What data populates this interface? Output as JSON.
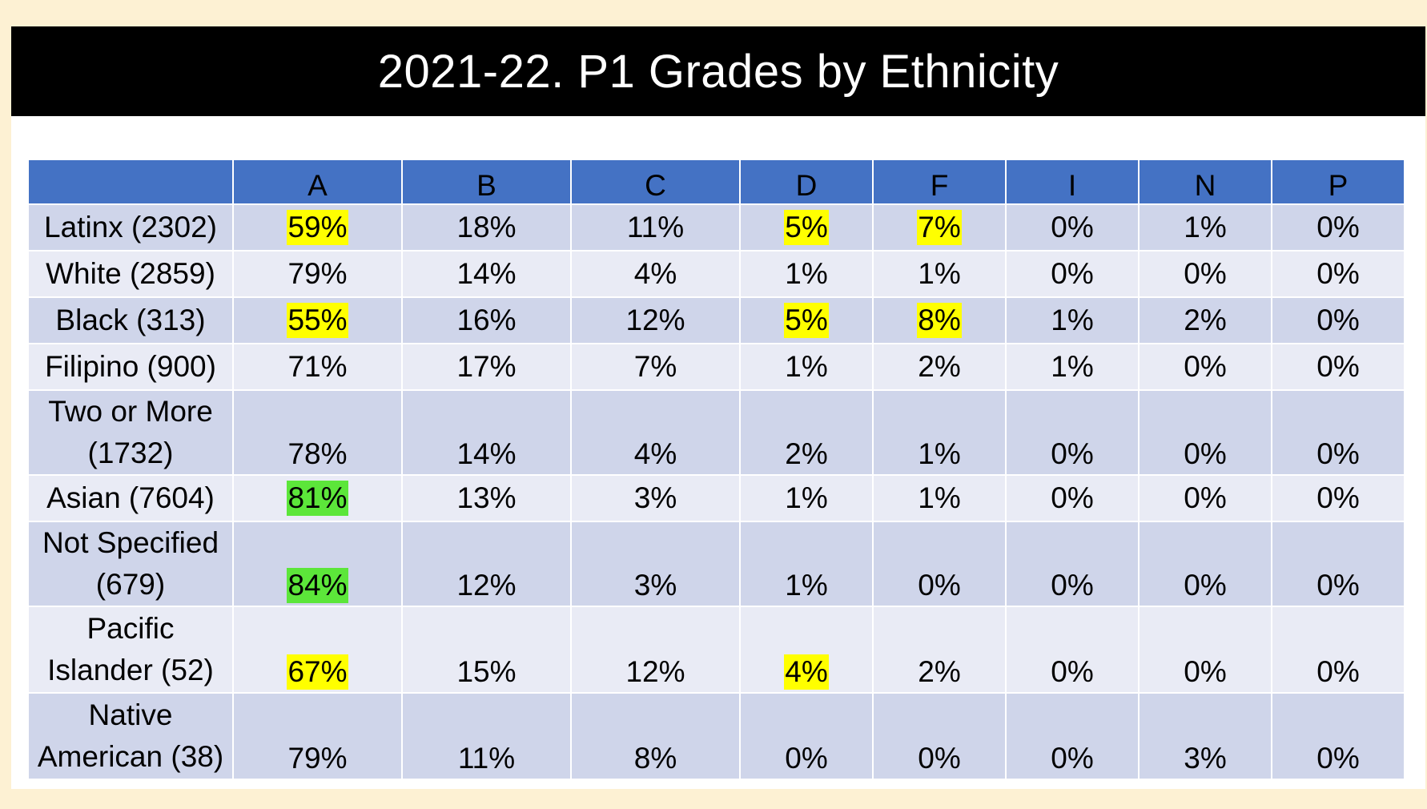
{
  "title": "2021-22. P1 Grades by Ethnicity",
  "columns": [
    "",
    "A",
    "B",
    "C",
    "D",
    "F",
    "I",
    "N",
    "P"
  ],
  "colors": {
    "page_background": "#fdf1d3",
    "title_bar": "#000000",
    "header": "#4472c4",
    "row_odd": "#cfd5ea",
    "row_even": "#e9ebf5",
    "highlight_yellow": "#ffff00",
    "highlight_green": "#5ce63a"
  },
  "rows": [
    {
      "label": "Latinx (2302)",
      "cells": [
        {
          "value": "59%",
          "highlight": "yellow"
        },
        {
          "value": "18%",
          "highlight": ""
        },
        {
          "value": "11%",
          "highlight": ""
        },
        {
          "value": "5%",
          "highlight": "yellow"
        },
        {
          "value": "7%",
          "highlight": "yellow"
        },
        {
          "value": "0%",
          "highlight": ""
        },
        {
          "value": "1%",
          "highlight": ""
        },
        {
          "value": "0%",
          "highlight": ""
        }
      ]
    },
    {
      "label": "White (2859)",
      "cells": [
        {
          "value": "79%",
          "highlight": ""
        },
        {
          "value": "14%",
          "highlight": ""
        },
        {
          "value": "4%",
          "highlight": ""
        },
        {
          "value": "1%",
          "highlight": ""
        },
        {
          "value": "1%",
          "highlight": ""
        },
        {
          "value": "0%",
          "highlight": ""
        },
        {
          "value": "0%",
          "highlight": ""
        },
        {
          "value": "0%",
          "highlight": ""
        }
      ]
    },
    {
      "label": "Black (313)",
      "cells": [
        {
          "value": "55%",
          "highlight": "yellow"
        },
        {
          "value": "16%",
          "highlight": ""
        },
        {
          "value": "12%",
          "highlight": ""
        },
        {
          "value": "5%",
          "highlight": "yellow"
        },
        {
          "value": "8%",
          "highlight": "yellow"
        },
        {
          "value": "1%",
          "highlight": ""
        },
        {
          "value": "2%",
          "highlight": ""
        },
        {
          "value": "0%",
          "highlight": ""
        }
      ]
    },
    {
      "label": "Filipino (900)",
      "cells": [
        {
          "value": "71%",
          "highlight": ""
        },
        {
          "value": "17%",
          "highlight": ""
        },
        {
          "value": "7%",
          "highlight": ""
        },
        {
          "value": "1%",
          "highlight": ""
        },
        {
          "value": "2%",
          "highlight": ""
        },
        {
          "value": "1%",
          "highlight": ""
        },
        {
          "value": "0%",
          "highlight": ""
        },
        {
          "value": "0%",
          "highlight": ""
        }
      ]
    },
    {
      "label_lines": [
        "Two or More",
        "(1732)"
      ],
      "cells": [
        {
          "value": "78%",
          "highlight": ""
        },
        {
          "value": "14%",
          "highlight": ""
        },
        {
          "value": "4%",
          "highlight": ""
        },
        {
          "value": "2%",
          "highlight": ""
        },
        {
          "value": "1%",
          "highlight": ""
        },
        {
          "value": "0%",
          "highlight": ""
        },
        {
          "value": "0%",
          "highlight": ""
        },
        {
          "value": "0%",
          "highlight": ""
        }
      ]
    },
    {
      "label": "Asian (7604)",
      "cells": [
        {
          "value": "81%",
          "highlight": "green"
        },
        {
          "value": "13%",
          "highlight": ""
        },
        {
          "value": "3%",
          "highlight": ""
        },
        {
          "value": "1%",
          "highlight": ""
        },
        {
          "value": "1%",
          "highlight": ""
        },
        {
          "value": "0%",
          "highlight": ""
        },
        {
          "value": "0%",
          "highlight": ""
        },
        {
          "value": "0%",
          "highlight": ""
        }
      ]
    },
    {
      "label_lines": [
        "Not Specified",
        "(679)"
      ],
      "cells": [
        {
          "value": "84%",
          "highlight": "green"
        },
        {
          "value": "12%",
          "highlight": ""
        },
        {
          "value": "3%",
          "highlight": ""
        },
        {
          "value": "1%",
          "highlight": ""
        },
        {
          "value": "0%",
          "highlight": ""
        },
        {
          "value": "0%",
          "highlight": ""
        },
        {
          "value": "0%",
          "highlight": ""
        },
        {
          "value": "0%",
          "highlight": ""
        }
      ]
    },
    {
      "label_lines": [
        "Pacific",
        "Islander (52)"
      ],
      "cells": [
        {
          "value": "67%",
          "highlight": "yellow"
        },
        {
          "value": "15%",
          "highlight": ""
        },
        {
          "value": "12%",
          "highlight": ""
        },
        {
          "value": "4%",
          "highlight": "yellow"
        },
        {
          "value": "2%",
          "highlight": ""
        },
        {
          "value": "0%",
          "highlight": ""
        },
        {
          "value": "0%",
          "highlight": ""
        },
        {
          "value": "0%",
          "highlight": ""
        }
      ]
    },
    {
      "label_lines": [
        "Native",
        "American (38)"
      ],
      "cells": [
        {
          "value": "79%",
          "highlight": ""
        },
        {
          "value": "11%",
          "highlight": ""
        },
        {
          "value": "8%",
          "highlight": ""
        },
        {
          "value": "0%",
          "highlight": ""
        },
        {
          "value": "0%",
          "highlight": ""
        },
        {
          "value": "0%",
          "highlight": ""
        },
        {
          "value": "3%",
          "highlight": ""
        },
        {
          "value": "0%",
          "highlight": ""
        }
      ]
    }
  ]
}
